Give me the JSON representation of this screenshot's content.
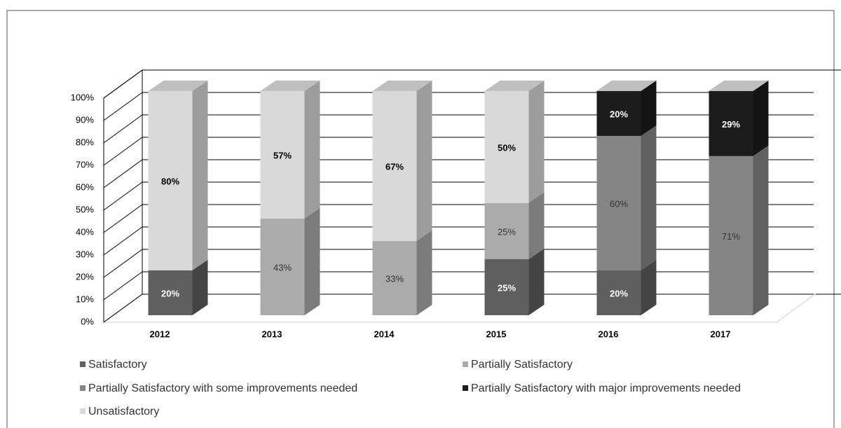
{
  "chart_data": {
    "type": "bar3d_stacked",
    "categories": [
      "2012",
      "2013",
      "2014",
      "2015",
      "2016",
      "2017"
    ],
    "series": [
      {
        "name": "Satisfactory",
        "color": "#5f5f5f",
        "values": [
          20,
          0,
          0,
          25,
          20,
          0
        ],
        "value_labels": [
          "20%",
          null,
          null,
          "25%",
          "20%",
          null
        ]
      },
      {
        "name": "Partially Satisfactory",
        "color": "#ababab",
        "values": [
          0,
          43,
          33,
          25,
          0,
          0
        ],
        "value_labels": [
          null,
          "43%",
          "33%",
          "25%",
          null,
          null
        ]
      },
      {
        "name": "Partially Satisfactory with some improvements needed",
        "color": "#858585",
        "values": [
          0,
          0,
          0,
          0,
          60,
          71
        ],
        "value_labels": [
          null,
          null,
          null,
          null,
          "60%",
          "71%"
        ]
      },
      {
        "name": "Partially Satisfactory with major improvements needed",
        "color": "#1c1c1c",
        "values": [
          0,
          0,
          0,
          0,
          20,
          29
        ],
        "value_labels": [
          null,
          null,
          null,
          null,
          "20%",
          "29%"
        ]
      },
      {
        "name": "Unsatisfactory",
        "color": "#d9d9d9",
        "values": [
          80,
          57,
          67,
          50,
          0,
          0
        ],
        "value_labels": [
          "80%",
          "57%",
          "67%",
          "50%",
          null,
          null
        ]
      }
    ],
    "ylim": [
      0,
      100
    ],
    "yticks": [
      {
        "value": 0,
        "label": "0%"
      },
      {
        "value": 10,
        "label": "10%"
      },
      {
        "value": 20,
        "label": "20%"
      },
      {
        "value": 30,
        "label": "30%"
      },
      {
        "value": 40,
        "label": "40%"
      },
      {
        "value": 50,
        "label": "50%"
      },
      {
        "value": 60,
        "label": "60%"
      },
      {
        "value": 70,
        "label": "70%"
      },
      {
        "value": 80,
        "label": "80%"
      },
      {
        "value": 90,
        "label": "90%"
      },
      {
        "value": 100,
        "label": "100%"
      }
    ],
    "grid": true,
    "legend": "bottom"
  }
}
